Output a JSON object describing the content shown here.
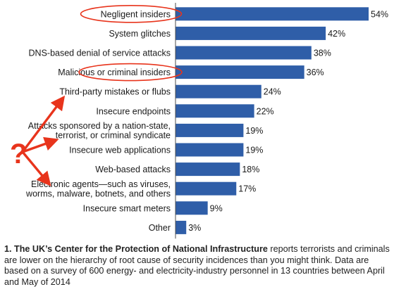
{
  "chart_data": {
    "type": "bar",
    "orientation": "horizontal",
    "categories": [
      [
        "Negligent insiders"
      ],
      [
        "System glitches"
      ],
      [
        "DNS-based denial of service attacks"
      ],
      [
        "Malicious or criminal insiders"
      ],
      [
        "Third-party mistakes or flubs"
      ],
      [
        "Insecure endpoints"
      ],
      [
        "Attacks sponsored by a nation-state,",
        "terrorist, or criminal syndicate"
      ],
      [
        "Insecure web applications"
      ],
      [
        "Web-based attacks"
      ],
      [
        "Electronic agents—such as viruses,",
        "worms, malware, botnets, and others"
      ],
      [
        "Insecure smart meters"
      ],
      [
        "Other"
      ]
    ],
    "values": [
      54,
      42,
      38,
      36,
      24,
      22,
      19,
      19,
      18,
      17,
      9,
      3
    ],
    "value_labels": [
      "54%",
      "42%",
      "38%",
      "36%",
      "24%",
      "22%",
      "19%",
      "19%",
      "18%",
      "17%",
      "9%",
      "3%"
    ],
    "xlim": [
      0,
      54
    ],
    "bar_color": "#2f5ea8",
    "highlight_color": "#e8341c",
    "highlighted_categories": [
      0,
      3
    ],
    "arrow_targets": [
      4,
      6,
      9
    ],
    "annotation_symbol": "?",
    "grid": false,
    "legend": "none"
  },
  "caption": {
    "bold": "1. The UK’s Center for the Protection of National Infrastructure",
    "text": " reports terrorists and criminals are lower on the hierarchy of root cause of security incidences than you might think. Data are based on a survey of 600 energy- and electricity-industry personnel in 13 countries between April and May of 2014"
  }
}
